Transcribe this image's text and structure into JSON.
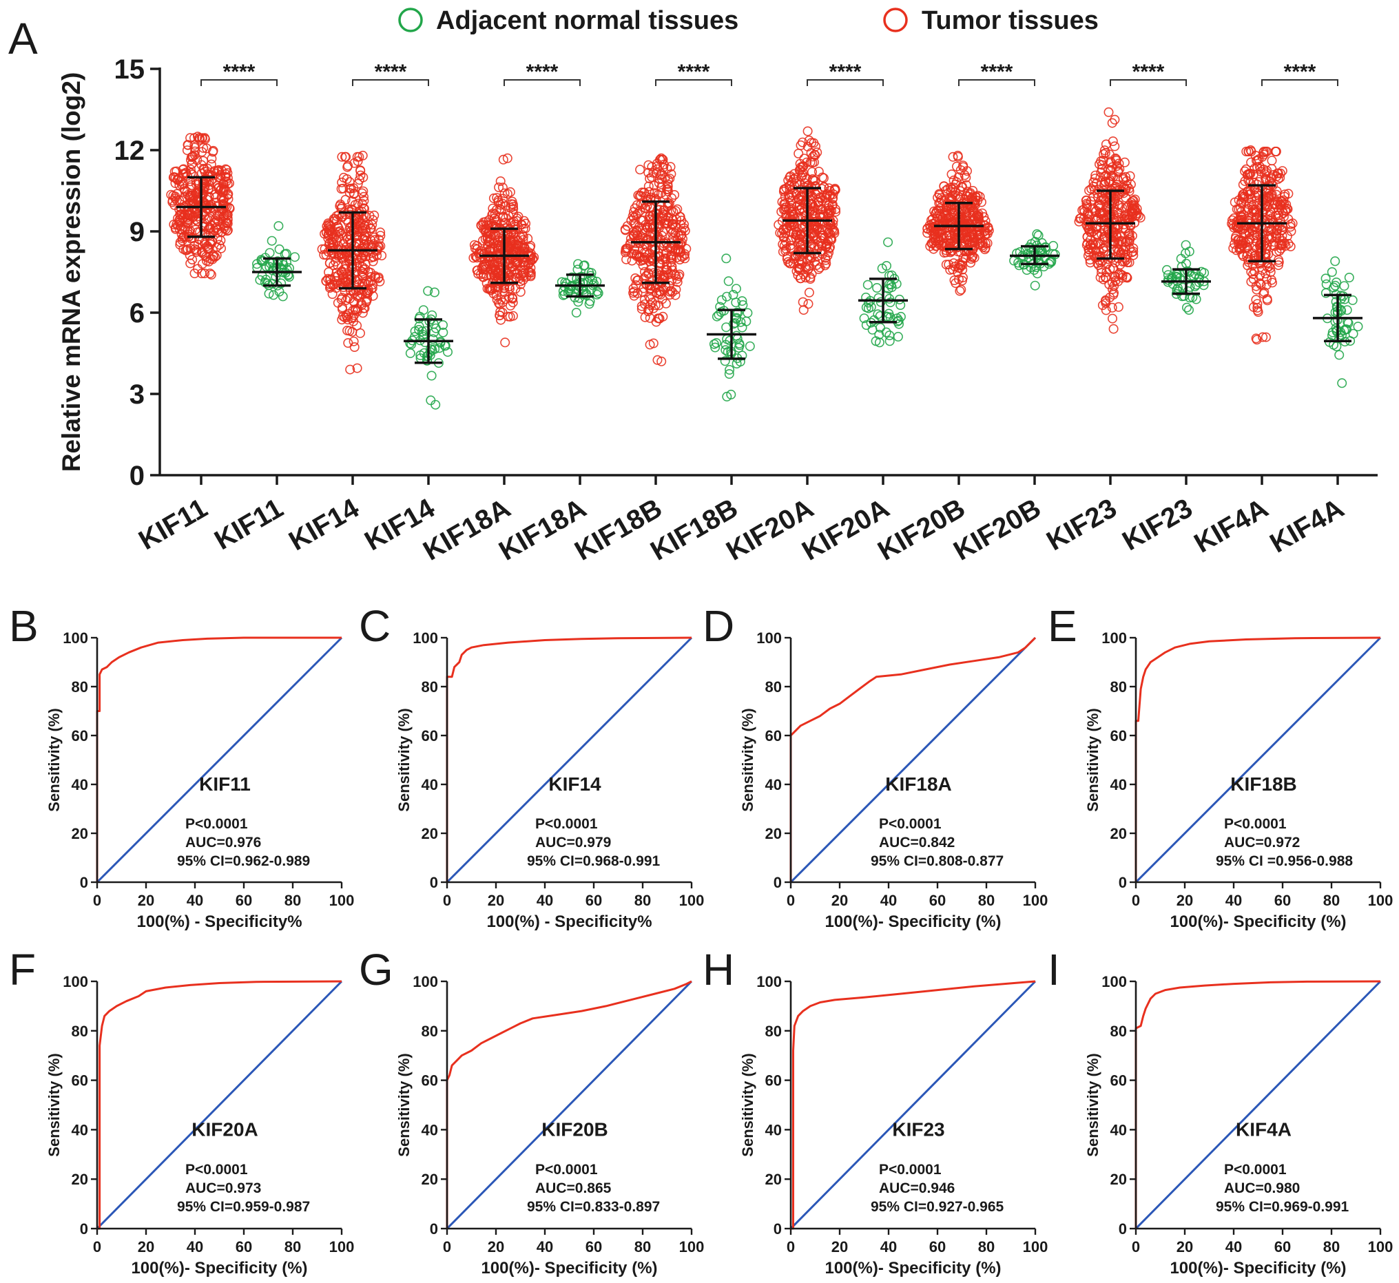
{
  "figure": {
    "colors": {
      "normal": "#22a64a",
      "tumor": "#e8301e",
      "diagonal": "#2b57b7",
      "roc": "#e8301e",
      "axis": "#1a1a1a"
    }
  },
  "chart_data": [
    {
      "panel": "A",
      "type": "scatter",
      "subtype": "dot-plot with mean ± SD",
      "legend": [
        {
          "label": "Adjacent normal tissues",
          "color": "#22a64a",
          "marker": "open-circle"
        },
        {
          "label": "Tumor tissues",
          "color": "#e8301e",
          "marker": "open-circle"
        }
      ],
      "legend_position": "top",
      "ylabel": "Relative mRNA expression (log2)",
      "ylim": [
        0,
        15
      ],
      "yticks": [
        0,
        3,
        6,
        9,
        12,
        15
      ],
      "significance": "****",
      "groups": [
        {
          "label": "KIF11",
          "tissue": "tumor",
          "mean": 9.9,
          "sd_low": 8.8,
          "sd_high": 11.0,
          "min": 7.4,
          "max": 12.5,
          "n": 370
        },
        {
          "label": "KIF11",
          "tissue": "normal",
          "mean": 7.5,
          "sd_low": 7.0,
          "sd_high": 8.0,
          "min": 6.6,
          "max": 9.2,
          "n": 50
        },
        {
          "label": "KIF14",
          "tissue": "tumor",
          "mean": 8.3,
          "sd_low": 6.9,
          "sd_high": 9.7,
          "min": 3.9,
          "max": 11.8,
          "n": 370
        },
        {
          "label": "KIF14",
          "tissue": "normal",
          "mean": 4.95,
          "sd_low": 4.15,
          "sd_high": 5.75,
          "min": 2.6,
          "max": 6.8,
          "n": 50
        },
        {
          "label": "KIF18A",
          "tissue": "tumor",
          "mean": 8.1,
          "sd_low": 7.1,
          "sd_high": 9.1,
          "min": 4.9,
          "max": 11.7,
          "n": 370
        },
        {
          "label": "KIF18A",
          "tissue": "normal",
          "mean": 7.0,
          "sd_low": 6.6,
          "sd_high": 7.4,
          "min": 6.0,
          "max": 7.8,
          "n": 50
        },
        {
          "label": "KIF18B",
          "tissue": "tumor",
          "mean": 8.6,
          "sd_low": 7.1,
          "sd_high": 10.1,
          "min": 4.2,
          "max": 11.7,
          "n": 370
        },
        {
          "label": "KIF18B",
          "tissue": "normal",
          "mean": 5.2,
          "sd_low": 4.3,
          "sd_high": 6.1,
          "min": 2.9,
          "max": 8.0,
          "n": 50
        },
        {
          "label": "KIF20A",
          "tissue": "tumor",
          "mean": 9.4,
          "sd_low": 8.2,
          "sd_high": 10.6,
          "min": 6.1,
          "max": 12.7,
          "n": 370
        },
        {
          "label": "KIF20A",
          "tissue": "normal",
          "mean": 6.45,
          "sd_low": 5.65,
          "sd_high": 7.25,
          "min": 4.9,
          "max": 8.6,
          "n": 50
        },
        {
          "label": "KIF20B",
          "tissue": "tumor",
          "mean": 9.2,
          "sd_low": 8.35,
          "sd_high": 10.05,
          "min": 6.8,
          "max": 11.8,
          "n": 370
        },
        {
          "label": "KIF20B",
          "tissue": "normal",
          "mean": 8.1,
          "sd_low": 7.8,
          "sd_high": 8.45,
          "min": 7.0,
          "max": 8.9,
          "n": 50
        },
        {
          "label": "KIF23",
          "tissue": "tumor",
          "mean": 9.3,
          "sd_low": 8.0,
          "sd_high": 10.5,
          "min": 5.4,
          "max": 13.4,
          "n": 370
        },
        {
          "label": "KIF23",
          "tissue": "normal",
          "mean": 7.15,
          "sd_low": 6.7,
          "sd_high": 7.6,
          "min": 6.1,
          "max": 8.5,
          "n": 50
        },
        {
          "label": "KIF4A",
          "tissue": "tumor",
          "mean": 9.3,
          "sd_low": 7.9,
          "sd_high": 10.7,
          "min": 5.0,
          "max": 12.0,
          "n": 370
        },
        {
          "label": "KIF4A",
          "tissue": "normal",
          "mean": 5.8,
          "sd_low": 4.95,
          "sd_high": 6.65,
          "min": 3.4,
          "max": 7.9,
          "n": 50
        }
      ]
    },
    {
      "panel": "B",
      "type": "line",
      "subtype": "ROC",
      "gene": "KIF11",
      "xlabel": "100(%) - Specificity%",
      "ylabel": "Sensitivity (%)",
      "xlim": [
        0,
        100
      ],
      "ylim": [
        0,
        100
      ],
      "ticks": [
        0,
        20,
        40,
        60,
        80,
        100
      ],
      "p_text": "P<0.0001",
      "auc_text": "AUC=0.976",
      "ci_text": "95% CI=0.962-0.989",
      "roc": [
        [
          0,
          0
        ],
        [
          0,
          70
        ],
        [
          1,
          70
        ],
        [
          1,
          85
        ],
        [
          2,
          87
        ],
        [
          4,
          88
        ],
        [
          6,
          90
        ],
        [
          9,
          92
        ],
        [
          13,
          94
        ],
        [
          18,
          96
        ],
        [
          25,
          98
        ],
        [
          35,
          99
        ],
        [
          45,
          99.6
        ],
        [
          60,
          100
        ],
        [
          100,
          100
        ]
      ]
    },
    {
      "panel": "C",
      "type": "line",
      "subtype": "ROC",
      "gene": "KIF14",
      "xlabel": "100(%) - Specificity%",
      "ylabel": "Sensitivity (%)",
      "xlim": [
        0,
        100
      ],
      "ylim": [
        0,
        100
      ],
      "ticks": [
        0,
        20,
        40,
        60,
        80,
        100
      ],
      "p_text": "P<0.0001",
      "auc_text": "AUC=0.979",
      "ci_text": "95% CI=0.968-0.991",
      "roc": [
        [
          0,
          0
        ],
        [
          0,
          84
        ],
        [
          2,
          84
        ],
        [
          3,
          88
        ],
        [
          5,
          90
        ],
        [
          6,
          93
        ],
        [
          8,
          95
        ],
        [
          10,
          96
        ],
        [
          15,
          97
        ],
        [
          25,
          98
        ],
        [
          40,
          99
        ],
        [
          55,
          99.5
        ],
        [
          70,
          99.8
        ],
        [
          100,
          100
        ]
      ]
    },
    {
      "panel": "D",
      "type": "line",
      "subtype": "ROC",
      "gene": "KIF18A",
      "xlabel": "100(%)- Specificity (%)",
      "ylabel": "Sensitivity (%)",
      "xlim": [
        0,
        100
      ],
      "ylim": [
        0,
        100
      ],
      "ticks": [
        0,
        20,
        40,
        60,
        80,
        100
      ],
      "p_text": "P<0.0001",
      "auc_text": "AUC=0.842",
      "ci_text": "95% CI=0.808-0.877",
      "roc": [
        [
          0,
          0
        ],
        [
          0,
          60
        ],
        [
          2,
          62
        ],
        [
          4,
          64
        ],
        [
          8,
          66
        ],
        [
          12,
          68
        ],
        [
          16,
          71
        ],
        [
          20,
          73
        ],
        [
          24,
          76
        ],
        [
          28,
          79
        ],
        [
          32,
          82
        ],
        [
          35,
          84
        ],
        [
          45,
          85
        ],
        [
          55,
          87
        ],
        [
          65,
          89
        ],
        [
          75,
          90.5
        ],
        [
          85,
          92
        ],
        [
          93,
          94
        ],
        [
          96,
          96
        ],
        [
          98,
          98
        ],
        [
          100,
          100
        ]
      ]
    },
    {
      "panel": "E",
      "type": "line",
      "subtype": "ROC",
      "gene": "KIF18B",
      "xlabel": "100(%)- Specificity (%)",
      "ylabel": "Sensitivity (%)",
      "xlim": [
        0,
        100
      ],
      "ylim": [
        0,
        100
      ],
      "ticks": [
        0,
        20,
        40,
        60,
        80,
        100
      ],
      "p_text": "P<0.0001",
      "auc_text": "AUC=0.972",
      "ci_text": "95% CI =0.956-0.988",
      "roc": [
        [
          0,
          0
        ],
        [
          0,
          66
        ],
        [
          1,
          66
        ],
        [
          2,
          79
        ],
        [
          3,
          84
        ],
        [
          4,
          87
        ],
        [
          6,
          90
        ],
        [
          9,
          92
        ],
        [
          12,
          94
        ],
        [
          16,
          96
        ],
        [
          22,
          97.5
        ],
        [
          30,
          98.5
        ],
        [
          45,
          99.3
        ],
        [
          65,
          99.8
        ],
        [
          100,
          100
        ]
      ]
    },
    {
      "panel": "F",
      "type": "line",
      "subtype": "ROC",
      "gene": "KIF20A",
      "xlabel": "100(%)- Specificity (%)",
      "ylabel": "Sensitivity (%)",
      "xlim": [
        0,
        100
      ],
      "ylim": [
        0,
        100
      ],
      "ticks": [
        0,
        20,
        40,
        60,
        80,
        100
      ],
      "p_text": "P<0.0001",
      "auc_text": "AUC=0.973",
      "ci_text": "95% CI=0.959-0.987",
      "roc": [
        [
          0,
          0
        ],
        [
          1,
          0
        ],
        [
          1,
          74
        ],
        [
          2,
          82
        ],
        [
          3,
          86
        ],
        [
          5,
          88
        ],
        [
          8,
          90
        ],
        [
          12,
          92
        ],
        [
          17,
          94
        ],
        [
          20,
          96
        ],
        [
          28,
          97.5
        ],
        [
          38,
          98.5
        ],
        [
          50,
          99.3
        ],
        [
          65,
          99.8
        ],
        [
          100,
          100
        ]
      ]
    },
    {
      "panel": "G",
      "type": "line",
      "subtype": "ROC",
      "gene": "KIF20B",
      "xlabel": "100(%)- Specificity (%)",
      "ylabel": "Sensitivity (%)",
      "xlim": [
        0,
        100
      ],
      "ylim": [
        0,
        100
      ],
      "ticks": [
        0,
        20,
        40,
        60,
        80,
        100
      ],
      "p_text": "P<0.0001",
      "auc_text": "AUC=0.865",
      "ci_text": "95% CI=0.833-0.897",
      "roc": [
        [
          0,
          0
        ],
        [
          0,
          60
        ],
        [
          1,
          62
        ],
        [
          2,
          66
        ],
        [
          4,
          68
        ],
        [
          6,
          70
        ],
        [
          10,
          72
        ],
        [
          14,
          75
        ],
        [
          18,
          77
        ],
        [
          22,
          79
        ],
        [
          26,
          81
        ],
        [
          30,
          83
        ],
        [
          35,
          85
        ],
        [
          45,
          86.5
        ],
        [
          55,
          88
        ],
        [
          65,
          90
        ],
        [
          75,
          92.5
        ],
        [
          85,
          95
        ],
        [
          93,
          97
        ],
        [
          98,
          99
        ],
        [
          100,
          100
        ]
      ]
    },
    {
      "panel": "H",
      "type": "line",
      "subtype": "ROC",
      "gene": "KIF23",
      "xlabel": "100(%)- Specificity (%)",
      "ylabel": "Sensitivity (%)",
      "xlim": [
        0,
        100
      ],
      "ylim": [
        0,
        100
      ],
      "ticks": [
        0,
        20,
        40,
        60,
        80,
        100
      ],
      "p_text": "P<0.0001",
      "auc_text": "AUC=0.946",
      "ci_text": "95% CI=0.927-0.965",
      "roc": [
        [
          0,
          0
        ],
        [
          1,
          0
        ],
        [
          1,
          72
        ],
        [
          1.5,
          82
        ],
        [
          3,
          86
        ],
        [
          5,
          88
        ],
        [
          8,
          90
        ],
        [
          12,
          91.5
        ],
        [
          18,
          92.5
        ],
        [
          30,
          93.5
        ],
        [
          45,
          95
        ],
        [
          60,
          96.5
        ],
        [
          75,
          98
        ],
        [
          90,
          99.2
        ],
        [
          100,
          100
        ]
      ]
    },
    {
      "panel": "I",
      "type": "line",
      "subtype": "ROC",
      "gene": "KIF4A",
      "xlabel": "100(%)- Specificity (%)",
      "ylabel": "Sensitivity (%)",
      "xlim": [
        0,
        100
      ],
      "ylim": [
        0,
        100
      ],
      "ticks": [
        0,
        20,
        40,
        60,
        80,
        100
      ],
      "p_text": "P<0.0001",
      "auc_text": "AUC=0.980",
      "ci_text": "95% CI=0.969-0.991",
      "roc": [
        [
          0,
          0
        ],
        [
          0,
          81
        ],
        [
          2,
          82
        ],
        [
          3,
          86
        ],
        [
          4,
          89
        ],
        [
          6,
          93
        ],
        [
          8,
          95
        ],
        [
          12,
          96.5
        ],
        [
          18,
          97.5
        ],
        [
          28,
          98.3
        ],
        [
          40,
          99
        ],
        [
          55,
          99.6
        ],
        [
          70,
          99.9
        ],
        [
          100,
          100
        ]
      ]
    }
  ]
}
